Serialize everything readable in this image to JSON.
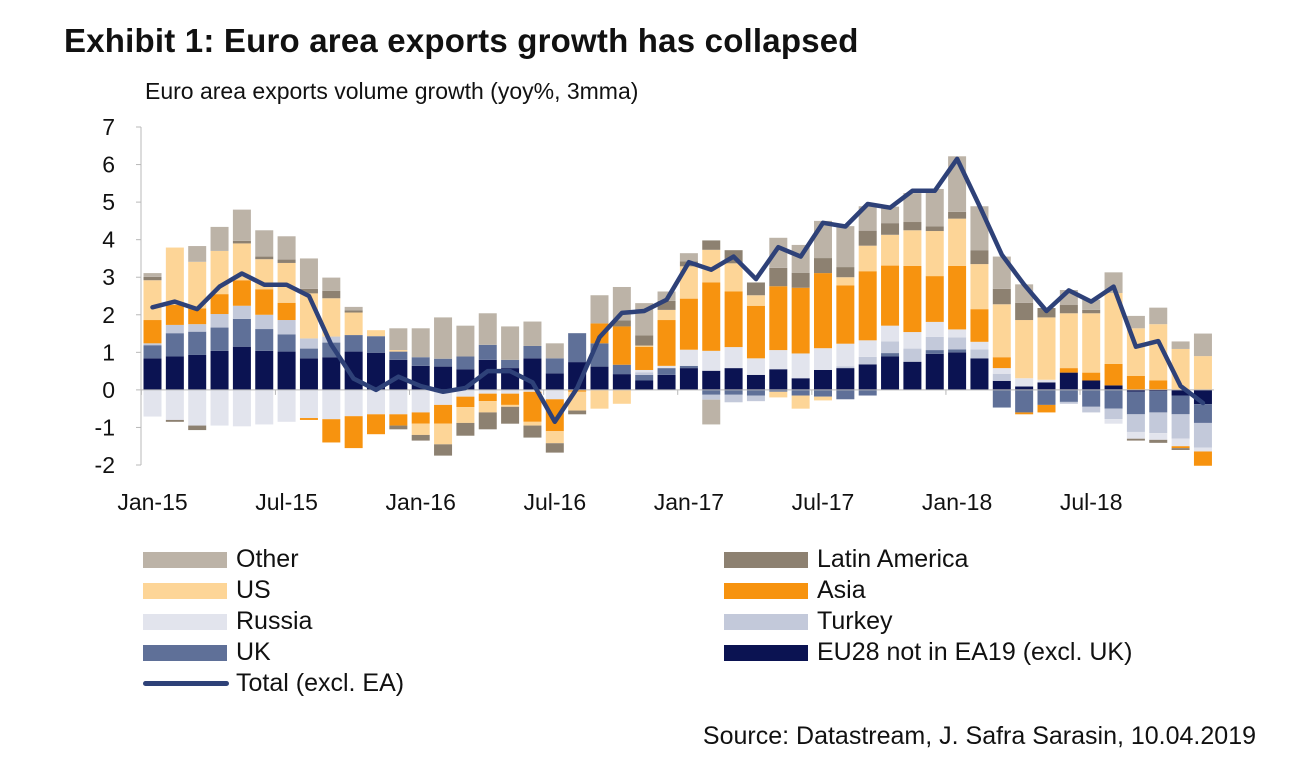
{
  "chart_data": {
    "type": "bar",
    "title": "Exhibit 1: Euro area exports growth has collapsed",
    "subtitle": "Euro area exports volume growth (yoy%, 3mma)",
    "source": "Source: Datastream, J. Safra Sarasin, 10.04.2019",
    "xlabel": "",
    "ylabel": "",
    "ylim": [
      -2,
      7
    ],
    "yticks": [
      "7",
      "6",
      "5",
      "4",
      "3",
      "2",
      "1",
      "0",
      "-1",
      "-2"
    ],
    "xtick_labels": [
      "Jan-15",
      "Jul-15",
      "Jan-16",
      "Jul-16",
      "Jan-17",
      "Jul-17",
      "Jan-18",
      "Jul-18"
    ],
    "period": "Jan-15 to Dec-18 (monthly)",
    "stacked": true,
    "series": [
      {
        "name": "EU28 not in EA19 (excl. UK)",
        "color": "#0b1352",
        "values": [
          0.84,
          0.89,
          0.93,
          1.04,
          1.15,
          1.04,
          1.02,
          0.84,
          0.87,
          1.02,
          0.99,
          0.8,
          0.64,
          0.62,
          0.55,
          0.8,
          0.58,
          0.84,
          0.44,
          0.74,
          0.62,
          0.42,
          0.25,
          0.4,
          0.58,
          0.51,
          0.58,
          0.4,
          0.55,
          0.31,
          0.53,
          0.58,
          0.68,
          0.89,
          0.75,
          0.96,
          1.0,
          0.84,
          0.24,
          0.09,
          0.2,
          0.46,
          0.25,
          0.12,
          -0.05,
          -0.03,
          -0.15,
          -0.38
        ]
      },
      {
        "name": "UK",
        "color": "#5f7098",
        "values": [
          0.35,
          0.62,
          0.62,
          0.62,
          0.74,
          0.58,
          0.46,
          0.26,
          0.39,
          0.44,
          0.44,
          0.22,
          0.23,
          0.21,
          0.34,
          0.4,
          0.22,
          0.33,
          0.4,
          0.77,
          0.62,
          0.25,
          0.15,
          0.18,
          0.06,
          -0.13,
          -0.13,
          -0.15,
          -0.05,
          -0.15,
          -0.18,
          -0.25,
          -0.15,
          0.09,
          0,
          0.1,
          0.08,
          0,
          -0.47,
          -0.6,
          -0.4,
          -0.32,
          -0.45,
          -0.5,
          -0.6,
          -0.57,
          -0.5,
          -0.5
        ]
      },
      {
        "name": "Turkey",
        "color": "#c3c9da",
        "values": [
          0.05,
          0.22,
          0.2,
          0.36,
          0.35,
          0.38,
          0.38,
          0.27,
          0.16,
          0,
          0,
          0,
          0,
          0,
          0,
          0,
          0,
          0,
          0,
          0,
          0,
          0,
          0.07,
          0,
          0,
          -0.13,
          -0.2,
          -0.15,
          0,
          0,
          0,
          0.05,
          0.2,
          0.31,
          0.35,
          0.35,
          0.32,
          0.24,
          0.19,
          0,
          0,
          -0.05,
          -0.15,
          -0.28,
          -0.47,
          -0.55,
          -0.65,
          -0.66
        ]
      },
      {
        "name": "Russia",
        "color": "#e2e4ed",
        "values": [
          -0.71,
          -0.8,
          -0.95,
          -0.95,
          -0.97,
          -0.92,
          -0.85,
          -0.75,
          -0.78,
          -0.7,
          -0.65,
          -0.65,
          -0.6,
          -0.4,
          -0.18,
          -0.1,
          -0.1,
          -0.05,
          -0.25,
          0,
          0,
          0,
          0.06,
          0.06,
          0.43,
          0.53,
          0.56,
          0.44,
          0.51,
          0.66,
          0.58,
          0.6,
          0.44,
          0.42,
          0.44,
          0.4,
          0.21,
          0.2,
          0.15,
          0.22,
          0.07,
          0,
          0,
          -0.12,
          -0.18,
          -0.18,
          -0.2,
          -0.1
        ]
      },
      {
        "name": "Asia",
        "color": "#f7930f",
        "values": [
          0.62,
          0.53,
          0.42,
          0.53,
          0.68,
          0.68,
          0.46,
          -0.05,
          -0.62,
          -0.85,
          -0.53,
          -0.3,
          -0.3,
          -0.5,
          -0.28,
          -0.2,
          -0.3,
          -0.8,
          -0.85,
          -0.05,
          0.53,
          1.02,
          0.62,
          1.22,
          1.36,
          1.82,
          1.48,
          1.4,
          1.7,
          1.75,
          2.0,
          1.55,
          1.84,
          1.6,
          1.76,
          1.22,
          1.69,
          0.87,
          0.29,
          -0.05,
          -0.2,
          0.12,
          0.21,
          0.57,
          0.37,
          0.25,
          -0.05,
          -0.38
        ]
      },
      {
        "name": "US",
        "color": "#fdd597",
        "values": [
          1.06,
          1.53,
          1.24,
          1.15,
          0.98,
          0.8,
          1.06,
          1.2,
          1.02,
          0.6,
          0.16,
          0.04,
          -0.3,
          -0.55,
          -0.42,
          -0.3,
          -0.05,
          -0.1,
          -0.32,
          -0.5,
          -0.5,
          -0.37,
          0.03,
          0.27,
          0.86,
          0.87,
          0.75,
          0.28,
          -0.15,
          -0.35,
          -0.1,
          0.22,
          0.68,
          0.82,
          0.95,
          1.2,
          1.26,
          1.2,
          1.41,
          1.55,
          1.66,
          1.46,
          1.58,
          1.89,
          1.27,
          1.5,
          1.09,
          0.9
        ]
      },
      {
        "name": "Latin America",
        "color": "#8d8171",
        "values": [
          0.09,
          -0.05,
          -0.12,
          0,
          0.07,
          0.07,
          0.09,
          0.12,
          0.2,
          0.06,
          0,
          -0.1,
          -0.15,
          -0.3,
          -0.34,
          -0.45,
          -0.45,
          -0.32,
          -0.25,
          -0.1,
          0,
          0.16,
          0.27,
          0.24,
          0.13,
          0.25,
          0.35,
          0.34,
          0.49,
          0.4,
          0.4,
          0.27,
          0.4,
          0.31,
          0.22,
          0.12,
          0.18,
          0.37,
          0.41,
          0.46,
          0.25,
          0.22,
          0.09,
          0,
          -0.05,
          -0.08,
          -0.05,
          0
        ]
      },
      {
        "name": "Other",
        "color": "#bcb3a7",
        "values": [
          0.1,
          0,
          0.42,
          0.64,
          0.83,
          0.7,
          0.62,
          0.81,
          0.35,
          0.09,
          0,
          0.58,
          0.77,
          1.1,
          0.82,
          0.84,
          0.89,
          0.65,
          0.4,
          0,
          0.75,
          0.89,
          0.86,
          0.25,
          0.22,
          -0.66,
          0,
          0,
          0.8,
          0.74,
          0.99,
          1.09,
          0.65,
          0.44,
          0.77,
          1.0,
          1.48,
          1.17,
          0.86,
          0.49,
          0,
          0.4,
          0.27,
          0.55,
          0.33,
          0.44,
          0.2,
          0.6
        ]
      }
    ],
    "line": {
      "name": "Total (excl. EA)",
      "color": "#2e4178",
      "values": [
        2.2,
        2.35,
        2.15,
        2.75,
        3.1,
        2.8,
        2.8,
        2.5,
        1.2,
        0.3,
        0,
        0.35,
        0.1,
        -0.05,
        0.05,
        0.5,
        0.5,
        0.2,
        -0.85,
        0.05,
        1.4,
        2.05,
        2.1,
        2.4,
        3.4,
        3.2,
        3.55,
        2.95,
        3.8,
        3.55,
        4.45,
        4.35,
        4.95,
        4.85,
        5.3,
        5.3,
        6.15,
        4.9,
        3.6,
        2.8,
        2.1,
        2.65,
        2.35,
        2.75,
        1.15,
        1.3,
        0.1,
        -0.35
      ]
    },
    "legend": {
      "placement": "bottom",
      "left": [
        {
          "label": "Other",
          "color": "#bcb3a7",
          "kind": "bar"
        },
        {
          "label": "US",
          "color": "#fdd597",
          "kind": "bar"
        },
        {
          "label": "Russia",
          "color": "#e2e4ed",
          "kind": "bar"
        },
        {
          "label": "UK",
          "color": "#5f7098",
          "kind": "bar"
        },
        {
          "label": "Total (excl. EA)",
          "color": "#2e4178",
          "kind": "line"
        }
      ],
      "right": [
        {
          "label": "Latin America",
          "color": "#8d8171",
          "kind": "bar"
        },
        {
          "label": "Asia",
          "color": "#f7930f",
          "kind": "bar"
        },
        {
          "label": "Turkey",
          "color": "#c3c9da",
          "kind": "bar"
        },
        {
          "label": "EU28 not in EA19 (excl. UK)",
          "color": "#0b1352",
          "kind": "bar"
        }
      ]
    }
  }
}
